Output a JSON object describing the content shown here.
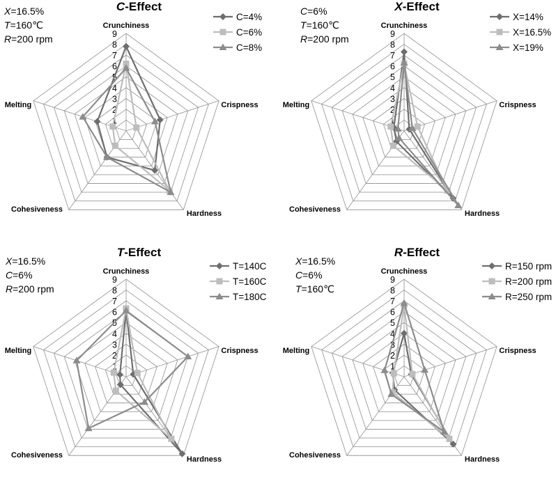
{
  "colors": {
    "dark": "#6e6e6e",
    "light": "#bdbdbd",
    "mid": "#8c8c8c",
    "grid": "#9a9a9a"
  },
  "axes": [
    "Crunchiness",
    "Crispness",
    "Hardness",
    "Cohesiveness",
    "Melting"
  ],
  "rmax": 9,
  "chart_data": [
    {
      "type": "radar",
      "title_var": "C",
      "title_rest": "-Effect",
      "conditions": [
        {
          "var": "X",
          "text": "=16.5%"
        },
        {
          "var": "T",
          "text": "=160℃"
        },
        {
          "var": "R",
          "text": "=200 rpm"
        }
      ],
      "axes": [
        "Crunchiness",
        "Crispness",
        "Hardness",
        "Cohesiveness",
        "Melting"
      ],
      "range": [
        0,
        9
      ],
      "ticks": [
        "1",
        "2",
        "3",
        "4",
        "5",
        "6",
        "7",
        "8",
        "9"
      ],
      "series": [
        {
          "name": "C=4%",
          "marker": "diamond",
          "color": "#6e6e6e",
          "values": [
            7.8,
            3.3,
            4.5,
            3.0,
            2.8
          ]
        },
        {
          "name": "C=6%",
          "marker": "square",
          "color": "#bdbdbd",
          "values": [
            6.2,
            1.0,
            6.8,
            1.7,
            1.3
          ]
        },
        {
          "name": "C=8%",
          "marker": "triangle",
          "color": "#8c8c8c",
          "values": [
            5.8,
            2.8,
            7.0,
            3.0,
            4.2
          ]
        }
      ]
    },
    {
      "type": "radar",
      "title_var": "X",
      "title_rest": "-Effect",
      "conditions": [
        {
          "var": "C",
          "text": "=6%"
        },
        {
          "var": "T",
          "text": "=160℃"
        },
        {
          "var": "R",
          "text": "=200 rpm"
        }
      ],
      "axes": [
        "Crunchiness",
        "Crispness",
        "Hardness",
        "Cohesiveness",
        "Melting"
      ],
      "range": [
        0,
        9
      ],
      "ticks": [
        "1",
        "2",
        "3",
        "4",
        "5",
        "6",
        "7",
        "8",
        "9"
      ],
      "series": [
        {
          "name": "X=14%",
          "marker": "diamond",
          "color": "#6e6e6e",
          "values": [
            7.3,
            0.5,
            7.7,
            1.2,
            1.0
          ]
        },
        {
          "name": "X=16.5%",
          "marker": "square",
          "color": "#bdbdbd",
          "values": [
            6.2,
            1.3,
            6.8,
            1.7,
            1.3
          ]
        },
        {
          "name": "X=19%",
          "marker": "triangle",
          "color": "#8c8c8c",
          "values": [
            6.3,
            0.8,
            8.5,
            0.8,
            0.6
          ]
        }
      ]
    },
    {
      "type": "radar",
      "title_var": "T",
      "title_rest": "-Effect",
      "conditions": [
        {
          "var": "X",
          "text": "=16.5%"
        },
        {
          "var": "C",
          "text": "=6%"
        },
        {
          "var": "R",
          "text": "=200 rpm"
        }
      ],
      "axes": [
        "Crunchiness",
        "Crispness",
        "Hardness",
        "Cohesiveness",
        "Melting"
      ],
      "range": [
        0,
        9
      ],
      "ticks": [
        "1",
        "2",
        "3",
        "4",
        "5",
        "6",
        "7",
        "8",
        "9"
      ],
      "series": [
        {
          "name": "T=140C",
          "marker": "diamond",
          "color": "#6e6e6e",
          "values": [
            6.2,
            0.7,
            8.8,
            0.9,
            0.6
          ]
        },
        {
          "name": "T=160C",
          "marker": "square",
          "color": "#bdbdbd",
          "values": [
            6.3,
            1.1,
            7.1,
            1.6,
            1.2
          ]
        },
        {
          "name": "T=180C",
          "marker": "triangle",
          "color": "#8c8c8c",
          "values": [
            6.1,
            6.0,
            2.9,
            5.9,
            4.8
          ]
        }
      ]
    },
    {
      "type": "radar",
      "title_var": "R",
      "title_rest": "-Effect",
      "conditions": [
        {
          "var": "X",
          "text": "=16.5%"
        },
        {
          "var": "C",
          "text": "=6%"
        },
        {
          "var": "T",
          "text": "=160℃"
        }
      ],
      "axes": [
        "Crunchiness",
        "Crispness",
        "Hardness",
        "Cohesiveness",
        "Melting"
      ],
      "range": [
        0,
        9
      ],
      "ticks": [
        "1",
        "2",
        "3",
        "4",
        "5",
        "6",
        "7",
        "8",
        "9"
      ],
      "series": [
        {
          "name": "R=150 rpm",
          "marker": "diamond",
          "color": "#6e6e6e",
          "values": [
            4.0,
            0.7,
            7.7,
            1.5,
            1.1
          ]
        },
        {
          "name": "R=200 rpm",
          "marker": "square",
          "color": "#bdbdbd",
          "values": [
            6.6,
            0.8,
            7.1,
            1.8,
            1.0
          ]
        },
        {
          "name": "R=250 rpm",
          "marker": "triangle",
          "color": "#8c8c8c",
          "values": [
            6.8,
            2.0,
            6.3,
            2.0,
            1.9
          ]
        }
      ]
    }
  ]
}
